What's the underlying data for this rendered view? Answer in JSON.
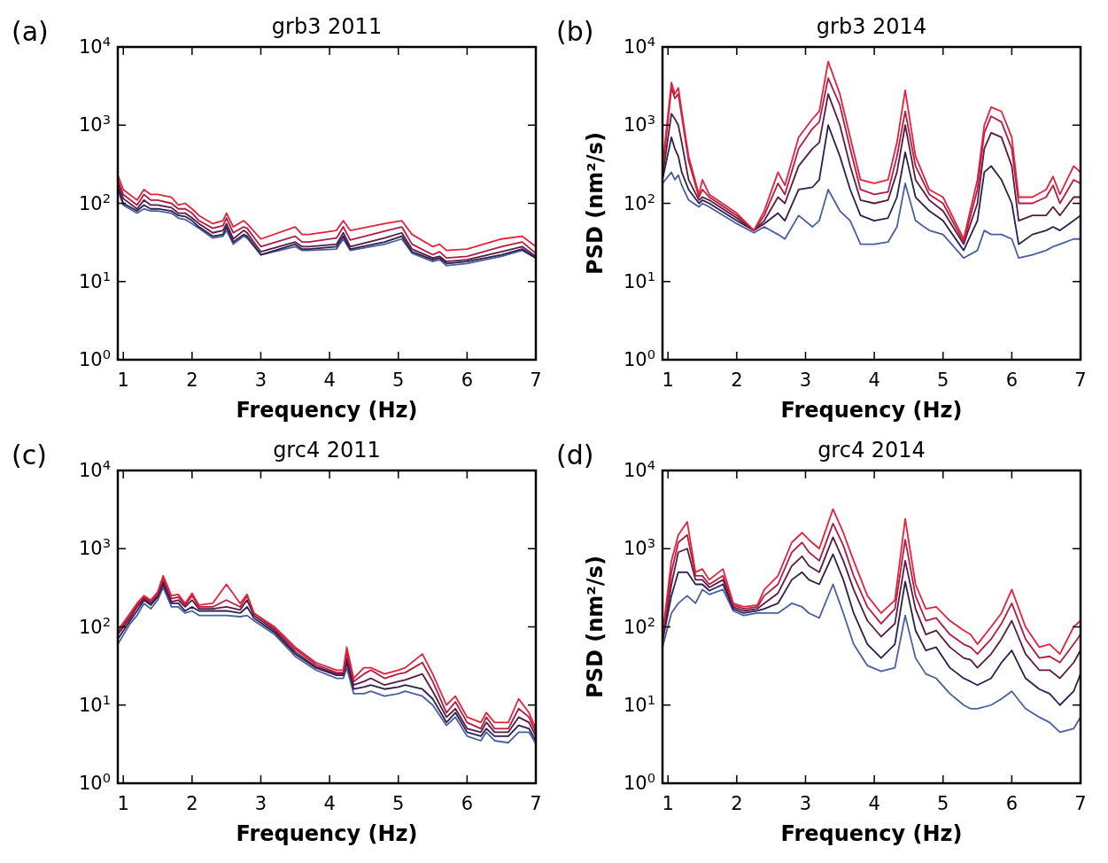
{
  "chart_data": [
    {
      "type": "line",
      "title": "grb3 2011",
      "xlabel": "Frequency (Hz)",
      "annotations": [
        "(a)"
      ],
      "log": "y",
      "xlim": [
        0.92,
        7
      ],
      "xticks": [
        1,
        2,
        3,
        4,
        5,
        6,
        7
      ],
      "ylim": [
        1,
        10000
      ],
      "yticks": [
        {
          "value": 1,
          "label": "10$^{0}$"
        },
        {
          "value": 10,
          "label": "10$^{1}$"
        },
        {
          "value": 100,
          "label": "10$^{2}$"
        },
        {
          "value": 1000,
          "label": "10$^{3}$"
        },
        {
          "value": 10000,
          "label": "10$^{4}$"
        }
      ],
      "x": [
        0.92,
        1.0,
        1.2,
        1.3,
        1.4,
        1.5,
        1.7,
        1.8,
        1.9,
        2.0,
        2.1,
        2.3,
        2.45,
        2.5,
        2.6,
        2.75,
        2.8,
        3.0,
        3.5,
        3.6,
        3.7,
        4.1,
        4.2,
        4.3,
        4.8,
        5.05,
        5.2,
        5.5,
        5.6,
        5.7,
        6.0,
        6.5,
        6.8,
        7.0
      ],
      "series": [
        {
          "color": "#4a5fa0",
          "values": [
            150,
            95,
            75,
            85,
            80,
            80,
            75,
            65,
            62,
            55,
            48,
            36,
            38,
            45,
            30,
            38,
            36,
            22,
            28,
            25,
            25,
            26,
            35,
            25,
            30,
            35,
            23,
            18,
            19,
            16,
            17,
            21,
            25,
            20
          ]
        },
        {
          "color": "#2a2050",
          "values": [
            160,
            100,
            80,
            95,
            85,
            85,
            80,
            70,
            68,
            60,
            50,
            38,
            40,
            50,
            32,
            40,
            38,
            22,
            30,
            26,
            26,
            28,
            38,
            26,
            32,
            38,
            24,
            19,
            20,
            17,
            18,
            22,
            26,
            20
          ]
        },
        {
          "color": "#5a1a40",
          "values": [
            180,
            115,
            85,
            110,
            95,
            95,
            88,
            75,
            75,
            65,
            55,
            42,
            45,
            55,
            35,
            45,
            42,
            24,
            32,
            28,
            28,
            30,
            42,
            28,
            36,
            42,
            26,
            20,
            21,
            18,
            19,
            24,
            28,
            21
          ]
        },
        {
          "color": "#b01c44",
          "values": [
            200,
            130,
            95,
            130,
            110,
            110,
            100,
            85,
            85,
            75,
            60,
            48,
            52,
            65,
            42,
            50,
            48,
            28,
            38,
            32,
            32,
            36,
            50,
            34,
            44,
            50,
            30,
            22,
            24,
            20,
            21,
            28,
            32,
            23
          ]
        },
        {
          "color": "#e8203a",
          "values": [
            230,
            150,
            110,
            150,
            130,
            130,
            120,
            95,
            100,
            85,
            70,
            55,
            60,
            75,
            50,
            60,
            55,
            35,
            50,
            40,
            40,
            45,
            60,
            45,
            55,
            60,
            40,
            28,
            30,
            25,
            26,
            35,
            38,
            28
          ]
        }
      ]
    },
    {
      "type": "line",
      "title": "grb3 2014",
      "xlabel": "Frequency (Hz)",
      "ylabel": "PSD (nm²/s)",
      "annotations": [
        "(b)"
      ],
      "log": "y",
      "xlim": [
        0.92,
        7
      ],
      "xticks": [
        1,
        2,
        3,
        4,
        5,
        6,
        7
      ],
      "ylim": [
        1,
        10000
      ],
      "yticks": [
        {
          "value": 1,
          "label": "10$^{0}$"
        },
        {
          "value": 10,
          "label": "10$^{1}$"
        },
        {
          "value": 100,
          "label": "10$^{2}$"
        },
        {
          "value": 1000,
          "label": "10$^{3}$"
        },
        {
          "value": 10000,
          "label": "10$^{4}$"
        }
      ],
      "x": [
        0.92,
        1.05,
        1.1,
        1.15,
        1.2,
        1.3,
        1.45,
        1.5,
        1.6,
        2.0,
        2.25,
        2.4,
        2.6,
        2.7,
        2.9,
        3.1,
        3.2,
        3.33,
        3.5,
        3.65,
        3.8,
        4.0,
        4.2,
        4.33,
        4.45,
        4.6,
        4.8,
        5.0,
        5.3,
        5.5,
        5.6,
        5.7,
        5.85,
        6.0,
        6.1,
        6.3,
        6.5,
        6.6,
        6.7,
        6.9,
        7.0
      ],
      "series": [
        {
          "color": "#4a5fa0",
          "values": [
            180,
            250,
            200,
            230,
            170,
            110,
            90,
            100,
            90,
            55,
            42,
            50,
            40,
            35,
            70,
            50,
            60,
            150,
            80,
            60,
            30,
            30,
            32,
            50,
            180,
            60,
            45,
            40,
            20,
            25,
            45,
            40,
            40,
            35,
            20,
            22,
            25,
            28,
            30,
            35,
            35
          ]
        },
        {
          "color": "#2a2050",
          "values": [
            200,
            700,
            500,
            400,
            250,
            150,
            100,
            110,
            100,
            60,
            45,
            55,
            75,
            60,
            150,
            160,
            200,
            1000,
            400,
            150,
            70,
            60,
            65,
            120,
            450,
            120,
            80,
            60,
            25,
            60,
            250,
            300,
            200,
            100,
            30,
            40,
            45,
            50,
            45,
            60,
            70
          ]
        },
        {
          "color": "#5a1a40",
          "values": [
            220,
            1400,
            1200,
            1000,
            600,
            200,
            110,
            120,
            110,
            65,
            45,
            60,
            120,
            100,
            300,
            500,
            600,
            2500,
            1000,
            300,
            110,
            100,
            110,
            250,
            1000,
            200,
            110,
            80,
            30,
            100,
            500,
            800,
            700,
            300,
            60,
            70,
            70,
            90,
            70,
            120,
            120
          ]
        },
        {
          "color": "#b01c44",
          "values": [
            250,
            3000,
            2200,
            2500,
            1300,
            350,
            120,
            150,
            120,
            70,
            45,
            70,
            180,
            130,
            500,
            900,
            1100,
            4000,
            1800,
            500,
            150,
            130,
            140,
            400,
            1500,
            300,
            130,
            100,
            32,
            150,
            800,
            1300,
            1100,
            500,
            100,
            100,
            120,
            170,
            100,
            200,
            180
          ]
        },
        {
          "color": "#e8203a",
          "values": [
            300,
            3500,
            2500,
            3000,
            1500,
            400,
            130,
            200,
            130,
            75,
            45,
            80,
            250,
            170,
            700,
            1200,
            1500,
            6500,
            2500,
            700,
            200,
            180,
            200,
            600,
            2800,
            400,
            150,
            120,
            35,
            200,
            1000,
            1700,
            1500,
            700,
            120,
            120,
            150,
            220,
            130,
            300,
            250
          ]
        }
      ]
    },
    {
      "type": "line",
      "title": "grc4 2011",
      "xlabel": "Frequency (Hz)",
      "annotations": [
        "(c)"
      ],
      "log": "y",
      "xlim": [
        0.92,
        7
      ],
      "xticks": [
        1,
        2,
        3,
        4,
        5,
        6,
        7
      ],
      "ylim": [
        1,
        10000
      ],
      "yticks": [
        {
          "value": 1,
          "label": "10$^{0}$"
        },
        {
          "value": 10,
          "label": "10$^{1}$"
        },
        {
          "value": 100,
          "label": "10$^{2}$"
        },
        {
          "value": 1000,
          "label": "10$^{3}$"
        },
        {
          "value": 10000,
          "label": "10$^{4}$"
        }
      ],
      "x": [
        0.92,
        1.1,
        1.2,
        1.3,
        1.4,
        1.5,
        1.58,
        1.7,
        1.8,
        1.9,
        2.0,
        2.1,
        2.3,
        2.5,
        2.7,
        2.8,
        2.9,
        3.2,
        3.5,
        3.8,
        4.1,
        4.2,
        4.25,
        4.35,
        4.5,
        4.6,
        4.8,
        5.0,
        5.1,
        5.35,
        5.5,
        5.7,
        5.83,
        6.0,
        6.2,
        6.28,
        6.4,
        6.6,
        6.75,
        6.9,
        7.0
      ],
      "series": [
        {
          "color": "#4a5fa0",
          "values": [
            60,
            110,
            140,
            200,
            170,
            220,
            320,
            180,
            180,
            150,
            160,
            140,
            140,
            140,
            135,
            140,
            120,
            80,
            42,
            28,
            22,
            22,
            30,
            14,
            14,
            15,
            13,
            14,
            15,
            13,
            10,
            5.5,
            7,
            4,
            3.5,
            4.5,
            3.5,
            3.3,
            4.5,
            4.5,
            3.2
          ]
        },
        {
          "color": "#2a2050",
          "values": [
            70,
            120,
            160,
            220,
            190,
            240,
            350,
            200,
            200,
            160,
            180,
            160,
            160,
            160,
            150,
            180,
            130,
            85,
            45,
            30,
            24,
            24,
            35,
            16,
            17,
            18,
            16,
            17,
            18,
            16,
            12,
            6,
            8,
            4.5,
            4,
            5,
            4,
            4,
            5.5,
            5,
            3.5
          ]
        },
        {
          "color": "#5a1a40",
          "values": [
            80,
            130,
            180,
            230,
            200,
            250,
            380,
            210,
            220,
            180,
            220,
            170,
            170,
            180,
            165,
            220,
            140,
            90,
            48,
            31,
            25,
            25,
            40,
            18,
            20,
            22,
            18,
            20,
            21,
            25,
            15,
            7,
            9,
            5,
            4.5,
            6,
            4.5,
            4.5,
            7,
            6,
            4
          ]
        },
        {
          "color": "#b01c44",
          "values": [
            85,
            140,
            190,
            240,
            210,
            270,
            420,
            230,
            240,
            190,
            250,
            180,
            180,
            220,
            180,
            250,
            150,
            95,
            52,
            33,
            26,
            26,
            48,
            20,
            25,
            28,
            22,
            25,
            26,
            35,
            20,
            8,
            11,
            6,
            5,
            7,
            5,
            5,
            9,
            7,
            4.5
          ]
        },
        {
          "color": "#e8203a",
          "values": [
            90,
            150,
            200,
            250,
            220,
            280,
            450,
            250,
            260,
            200,
            270,
            190,
            200,
            350,
            200,
            260,
            150,
            100,
            55,
            35,
            28,
            28,
            55,
            22,
            30,
            30,
            25,
            28,
            30,
            45,
            25,
            10,
            13,
            7,
            6,
            8,
            6,
            6,
            12,
            8,
            5
          ]
        }
      ]
    },
    {
      "type": "line",
      "title": "grc4 2014",
      "xlabel": "Frequency (Hz)",
      "ylabel": "PSD (nm²/s)",
      "annotations": [
        "(d)"
      ],
      "log": "y",
      "xlim": [
        0.92,
        7
      ],
      "xticks": [
        1,
        2,
        3,
        4,
        5,
        6,
        7
      ],
      "ylim": [
        1,
        10000
      ],
      "yticks": [
        {
          "value": 1,
          "label": "10$^{0}$"
        },
        {
          "value": 10,
          "label": "10$^{1}$"
        },
        {
          "value": 100,
          "label": "10$^{2}$"
        },
        {
          "value": 1000,
          "label": "10$^{3}$"
        },
        {
          "value": 10000,
          "label": "10$^{4}$"
        }
      ],
      "x": [
        0.92,
        1.05,
        1.15,
        1.28,
        1.4,
        1.5,
        1.6,
        1.8,
        1.95,
        2.1,
        2.3,
        2.4,
        2.6,
        2.8,
        2.95,
        3.05,
        3.2,
        3.4,
        3.55,
        3.7,
        3.9,
        4.1,
        4.3,
        4.45,
        4.6,
        4.75,
        4.9,
        5.1,
        5.3,
        5.4,
        5.5,
        5.7,
        5.85,
        6.0,
        6.2,
        6.4,
        6.55,
        6.7,
        6.9,
        7.0
      ],
      "series": [
        {
          "color": "#4a5fa0",
          "values": [
            55,
            150,
            200,
            250,
            200,
            300,
            260,
            300,
            160,
            140,
            150,
            150,
            150,
            200,
            180,
            150,
            130,
            350,
            150,
            60,
            32,
            27,
            30,
            140,
            40,
            25,
            22,
            14,
            10,
            9,
            9,
            10,
            12,
            15,
            9,
            7,
            6,
            4.5,
            5,
            7
          ]
        },
        {
          "color": "#2a2050",
          "values": [
            65,
            250,
            500,
            500,
            350,
            350,
            290,
            350,
            170,
            150,
            160,
            170,
            200,
            400,
            500,
            400,
            350,
            850,
            400,
            150,
            60,
            40,
            60,
            380,
            90,
            50,
            55,
            30,
            22,
            20,
            18,
            22,
            35,
            50,
            22,
            16,
            14,
            10,
            15,
            25
          ]
        },
        {
          "color": "#5a1a40",
          "values": [
            70,
            350,
            900,
            1000,
            400,
            400,
            320,
            400,
            180,
            160,
            170,
            200,
            270,
            600,
            800,
            600,
            500,
            1400,
            700,
            300,
            120,
            75,
            110,
            700,
            170,
            80,
            90,
            55,
            40,
            38,
            30,
            45,
            70,
            120,
            45,
            28,
            28,
            22,
            35,
            50
          ]
        },
        {
          "color": "#b01c44",
          "values": [
            75,
            500,
            1200,
            1500,
            450,
            450,
            350,
            450,
            190,
            170,
            180,
            250,
            350,
            900,
            1200,
            900,
            700,
            2100,
            1100,
            450,
            180,
            110,
            170,
            1300,
            250,
            120,
            130,
            80,
            60,
            55,
            45,
            70,
            110,
            200,
            70,
            40,
            42,
            35,
            60,
            80
          ]
        },
        {
          "color": "#e8203a",
          "values": [
            80,
            700,
            1500,
            2200,
            500,
            550,
            400,
            550,
            200,
            180,
            190,
            300,
            450,
            1200,
            1600,
            1300,
            1000,
            3200,
            1600,
            700,
            250,
            150,
            220,
            2400,
            350,
            170,
            180,
            120,
            90,
            80,
            60,
            100,
            150,
            300,
            100,
            55,
            60,
            45,
            100,
            120
          ]
        }
      ]
    }
  ]
}
